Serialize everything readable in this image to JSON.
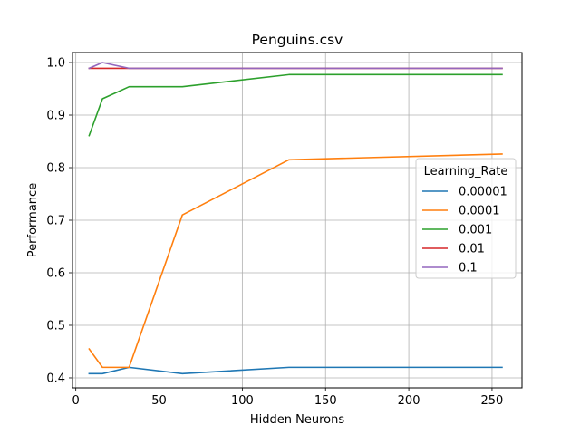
{
  "chart_data": {
    "type": "line",
    "title": "Penguins.csv",
    "xlabel": "Hidden Neurons",
    "ylabel": "Performance",
    "xlim": [
      -2,
      268
    ],
    "ylim": [
      0.381,
      1.019
    ],
    "xticks": [
      0,
      50,
      100,
      150,
      200,
      250
    ],
    "yticks": [
      0.4,
      0.5,
      0.6,
      0.7,
      0.8,
      0.9,
      1.0
    ],
    "ytick_labels": [
      "0.4",
      "0.5",
      "0.6",
      "0.7",
      "0.8",
      "0.9",
      "1.0"
    ],
    "grid": true,
    "legend_title": "Learning_Rate",
    "legend_position": "center-right",
    "series": [
      {
        "name": "0.00001",
        "color": "#1f77b4",
        "x": [
          8,
          16,
          32,
          64,
          128,
          256
        ],
        "y": [
          0.408,
          0.408,
          0.42,
          0.408,
          0.42,
          0.42
        ]
      },
      {
        "name": "0.0001",
        "color": "#ff7f0e",
        "x": [
          8,
          16,
          32,
          64,
          128,
          256
        ],
        "y": [
          0.455,
          0.42,
          0.42,
          0.71,
          0.815,
          0.826
        ]
      },
      {
        "name": "0.001",
        "color": "#2ca02c",
        "x": [
          8,
          16,
          32,
          64,
          128,
          256
        ],
        "y": [
          0.861,
          0.931,
          0.954,
          0.954,
          0.977,
          0.977
        ]
      },
      {
        "name": "0.01",
        "color": "#d62728",
        "x": [
          8,
          16,
          32,
          64,
          128,
          256
        ],
        "y": [
          0.989,
          0.989,
          0.989,
          0.989,
          0.989,
          0.989
        ]
      },
      {
        "name": "0.1",
        "color": "#9467bd",
        "x": [
          8,
          16,
          32,
          64,
          128,
          256
        ],
        "y": [
          0.989,
          1.0,
          0.989,
          0.989,
          0.989,
          0.989
        ]
      }
    ]
  }
}
